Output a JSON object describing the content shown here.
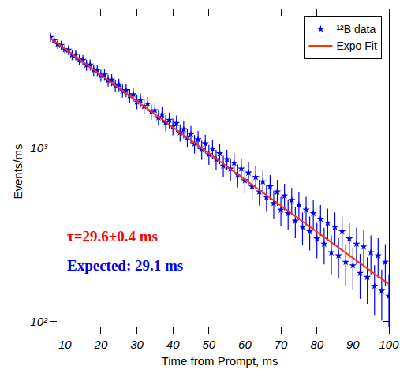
{
  "chart_data": {
    "type": "scatter",
    "x_label": "Time from Prompt, ms",
    "y_label": "Events/ms",
    "log": "y",
    "grid": false,
    "legend": "top-right",
    "xlim": [
      6,
      100
    ],
    "xticks": [
      10,
      20,
      30,
      40,
      50,
      60,
      70,
      80,
      90,
      100
    ],
    "ylim": [
      85,
      6300
    ],
    "yticks": [
      {
        "value": 100,
        "label": "10²"
      },
      {
        "value": 1000,
        "label": "10³"
      }
    ],
    "annotations": [
      {
        "text": "τ=29.6±0.4 ms",
        "color": "#ff0000"
      },
      {
        "text": "Expected: 29.1 ms",
        "color": "#0000ee"
      }
    ],
    "series": [
      {
        "name": "¹²B data",
        "type": "scatter",
        "marker": "star",
        "color": "#0000ff",
        "x": [
          6,
          7,
          8,
          9,
          10,
          11,
          12,
          13,
          14,
          15,
          16,
          17,
          18,
          19,
          20,
          21,
          22,
          23,
          24,
          25,
          26,
          27,
          28,
          29,
          30,
          31,
          32,
          33,
          34,
          35,
          36,
          37,
          38,
          39,
          40,
          41,
          42,
          43,
          44,
          45,
          46,
          47,
          48,
          49,
          50,
          51,
          52,
          53,
          54,
          55,
          56,
          57,
          58,
          59,
          60,
          61,
          62,
          63,
          64,
          65,
          66,
          67,
          68,
          69,
          70,
          71,
          72,
          73,
          74,
          75,
          76,
          77,
          78,
          79,
          80,
          81,
          82,
          83,
          84,
          85,
          86,
          87,
          88,
          89,
          90,
          91,
          92,
          93,
          94,
          95,
          96,
          97,
          98,
          99,
          100
        ],
        "values": [
          4350,
          4180,
          3980,
          3920,
          3700,
          3680,
          3450,
          3440,
          3230,
          3210,
          3010,
          3020,
          2820,
          2810,
          2620,
          2650,
          2460,
          2470,
          2290,
          2320,
          2140,
          2150,
          2010,
          2040,
          1850,
          1890,
          1740,
          1800,
          1620,
          1650,
          1500,
          1560,
          1400,
          1450,
          1330,
          1390,
          1230,
          1280,
          1150,
          1200,
          1060,
          1120,
          980,
          1060,
          920,
          990,
          860,
          930,
          790,
          860,
          760,
          820,
          700,
          760,
          650,
          720,
          600,
          680,
          560,
          640,
          520,
          600,
          480,
          560,
          440,
          530,
          420,
          500,
          380,
          470,
          350,
          440,
          330,
          420,
          300,
          390,
          280,
          370,
          250,
          350,
          240,
          330,
          220,
          300,
          210,
          280,
          190,
          270,
          180,
          250,
          160,
          240,
          150,
          220,
          140
        ],
        "errors": [
          262,
          258,
          252,
          250,
          243,
          242,
          235,
          234,
          227,
          226,
          219,
          220,
          212,
          212,
          205,
          206,
          198,
          199,
          191,
          193,
          185,
          185,
          179,
          181,
          172,
          174,
          167,
          170,
          161,
          162,
          155,
          158,
          150,
          152,
          146,
          149,
          140,
          143,
          136,
          139,
          130,
          134,
          125,
          130,
          121,
          126,
          117,
          122,
          112,
          117,
          110,
          115,
          106,
          110,
          102,
          107,
          98,
          104,
          95,
          101,
          91,
          98,
          88,
          95,
          84,
          92,
          82,
          89,
          78,
          87,
          75,
          84,
          73,
          82,
          69,
          79,
          67,
          77,
          63,
          75,
          62,
          73,
          59,
          69,
          58,
          67,
          55,
          66,
          54,
          63,
          51,
          62,
          49,
          59,
          47
        ]
      },
      {
        "name": "Expo Fit",
        "type": "line",
        "line_style": "solid",
        "color": "#ff3300",
        "x": [
          6,
          100
        ],
        "values": [
          4300,
          164
        ]
      }
    ]
  }
}
